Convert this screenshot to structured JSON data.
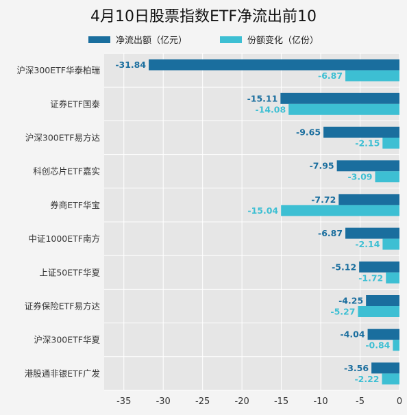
{
  "chart_data": {
    "type": "bar",
    "orientation": "horizontal",
    "title": "4月10日股票指数ETF净流出前10",
    "categories": [
      "沪深300ETF华泰柏瑞",
      "证券ETF国泰",
      "沪深300ETF易方达",
      "科创芯片ETF嘉实",
      "券商ETF华宝",
      "中证1000ETF南方",
      "上证50ETF华夏",
      "证券保险ETF易方达",
      "沪深300ETF华夏",
      "港股通非银ETF广发"
    ],
    "series": [
      {
        "name": "净流出额（亿元）",
        "color": "#1a6e9e",
        "values": [
          -31.84,
          -15.11,
          -9.65,
          -7.95,
          -7.72,
          -6.87,
          -5.12,
          -4.25,
          -4.04,
          -3.56
        ],
        "labels": [
          "-31.84",
          "-15.11",
          "-9.65",
          "-7.95",
          "-7.72",
          "-6.87",
          "-5.12",
          "-4.25",
          "-4.04",
          "-3.56"
        ]
      },
      {
        "name": "份额变化（亿份）",
        "color": "#3dbfd3",
        "values": [
          -6.87,
          -14.08,
          -2.15,
          -3.09,
          -15.04,
          -2.14,
          -1.72,
          -5.27,
          -0.84,
          -2.22
        ],
        "labels": [
          "-6.87",
          "-14.08",
          "-2.15",
          "-3.09",
          "-15.04",
          "-2.14",
          "-1.72",
          "-5.27",
          "-0.84",
          "-2.22"
        ]
      }
    ],
    "xlim": [
      -37.5,
      0
    ],
    "xticks": [
      -35,
      -30,
      -25,
      -20,
      -15,
      -10,
      -5,
      0
    ],
    "xtick_labels": [
      "-35",
      "-30",
      "-25",
      "-20",
      "-15",
      "-10",
      "-5",
      "0"
    ],
    "grid": true,
    "legend_position": "top-center"
  }
}
